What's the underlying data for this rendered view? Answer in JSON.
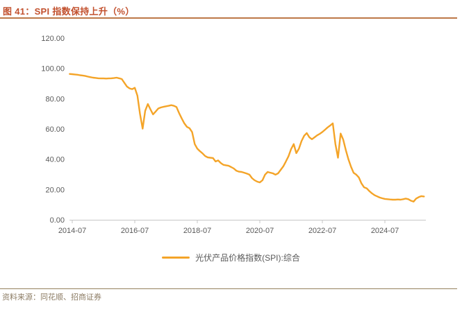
{
  "figure": {
    "title": "图 41：SPI 指数保持上升（%）"
  },
  "legend": {
    "label": "光伏产品价格指数(SPI):综合"
  },
  "footer": {
    "source": "资料来源：同花顺、招商证券"
  },
  "colors": {
    "line": "#F4A428",
    "title": "#C2502D",
    "title_rule": "#BD7747",
    "axis": "#C6C6C6",
    "tick_label": "#595959",
    "footer_rule": "#94805C",
    "footer_text": "#8C7C64"
  },
  "chart_data": {
    "type": "line",
    "title": "图 41：SPI 指数保持上升（%）",
    "xlabel": "",
    "ylabel": "",
    "grid": false,
    "legend_position": "bottom",
    "x_axis": {
      "ticks": [
        "2014-07",
        "2016-07",
        "2018-07",
        "2020-07",
        "2022-07",
        "2024-07"
      ]
    },
    "y_axis": {
      "ticks": [
        0,
        20,
        40,
        60,
        80,
        100,
        120
      ],
      "tick_labels": [
        "0.00",
        "20.00",
        "40.00",
        "60.00",
        "80.00",
        "100.00",
        "120.00"
      ],
      "range": [
        0,
        120
      ]
    },
    "series": [
      {
        "name": "光伏产品价格指数(SPI):综合",
        "color": "#F4A428",
        "points": [
          [
            "2014-06",
            96.3
          ],
          [
            "2014-07",
            96.2
          ],
          [
            "2014-08",
            96.0
          ],
          [
            "2014-09",
            95.8
          ],
          [
            "2014-10",
            95.5
          ],
          [
            "2014-11",
            95.3
          ],
          [
            "2014-12",
            95.0
          ],
          [
            "2015-01",
            94.6
          ],
          [
            "2015-02",
            94.2
          ],
          [
            "2015-03",
            93.9
          ],
          [
            "2015-04",
            93.7
          ],
          [
            "2015-05",
            93.5
          ],
          [
            "2015-06",
            93.4
          ],
          [
            "2015-07",
            93.4
          ],
          [
            "2015-08",
            93.3
          ],
          [
            "2015-09",
            93.4
          ],
          [
            "2015-10",
            93.5
          ],
          [
            "2015-11",
            93.6
          ],
          [
            "2015-12",
            93.9
          ],
          [
            "2016-01",
            93.5
          ],
          [
            "2016-02",
            93.0
          ],
          [
            "2016-03",
            90.5
          ],
          [
            "2016-04",
            88.0
          ],
          [
            "2016-05",
            86.8
          ],
          [
            "2016-06",
            86.3
          ],
          [
            "2016-07",
            87.2
          ],
          [
            "2016-08",
            82.0
          ],
          [
            "2016-09",
            70.0
          ],
          [
            "2016-10",
            60.2
          ],
          [
            "2016-11",
            72.0
          ],
          [
            "2016-12",
            76.5
          ],
          [
            "2017-01",
            73.0
          ],
          [
            "2017-02",
            69.6
          ],
          [
            "2017-03",
            71.5
          ],
          [
            "2017-04",
            73.5
          ],
          [
            "2017-05",
            74.2
          ],
          [
            "2017-06",
            74.6
          ],
          [
            "2017-07",
            75.0
          ],
          [
            "2017-08",
            75.3
          ],
          [
            "2017-09",
            75.7
          ],
          [
            "2017-10",
            75.3
          ],
          [
            "2017-11",
            74.5
          ],
          [
            "2017-12",
            70.5
          ],
          [
            "2018-01",
            67.0
          ],
          [
            "2018-02",
            63.7
          ],
          [
            "2018-03",
            61.4
          ],
          [
            "2018-04",
            60.5
          ],
          [
            "2018-05",
            58.0
          ],
          [
            "2018-06",
            50.0
          ],
          [
            "2018-07",
            47.0
          ],
          [
            "2018-08",
            45.3
          ],
          [
            "2018-09",
            43.9
          ],
          [
            "2018-10",
            42.1
          ],
          [
            "2018-11",
            41.2
          ],
          [
            "2018-12",
            41.0
          ],
          [
            "2019-01",
            40.8
          ],
          [
            "2019-02",
            38.5
          ],
          [
            "2019-03",
            39.2
          ],
          [
            "2019-04",
            37.5
          ],
          [
            "2019-05",
            36.3
          ],
          [
            "2019-06",
            36.0
          ],
          [
            "2019-07",
            35.7
          ],
          [
            "2019-08",
            34.8
          ],
          [
            "2019-09",
            33.9
          ],
          [
            "2019-10",
            32.4
          ],
          [
            "2019-11",
            31.8
          ],
          [
            "2019-12",
            31.6
          ],
          [
            "2020-01",
            31.1
          ],
          [
            "2020-02",
            30.5
          ],
          [
            "2020-03",
            29.8
          ],
          [
            "2020-04",
            27.5
          ],
          [
            "2020-05",
            26.1
          ],
          [
            "2020-06",
            25.2
          ],
          [
            "2020-07",
            24.7
          ],
          [
            "2020-08",
            26.1
          ],
          [
            "2020-09",
            29.8
          ],
          [
            "2020-10",
            31.6
          ],
          [
            "2020-11",
            31.1
          ],
          [
            "2020-12",
            30.7
          ],
          [
            "2021-01",
            29.8
          ],
          [
            "2021-02",
            30.7
          ],
          [
            "2021-03",
            33.0
          ],
          [
            "2021-04",
            35.3
          ],
          [
            "2021-05",
            38.5
          ],
          [
            "2021-06",
            42.0
          ],
          [
            "2021-07",
            46.7
          ],
          [
            "2021-08",
            50.0
          ],
          [
            "2021-09",
            44.0
          ],
          [
            "2021-10",
            47.0
          ],
          [
            "2021-11",
            52.0
          ],
          [
            "2021-12",
            55.5
          ],
          [
            "2022-01",
            57.3
          ],
          [
            "2022-02",
            54.5
          ],
          [
            "2022-03",
            53.2
          ],
          [
            "2022-04",
            54.5
          ],
          [
            "2022-05",
            55.8
          ],
          [
            "2022-06",
            56.8
          ],
          [
            "2022-07",
            58.0
          ],
          [
            "2022-08",
            59.5
          ],
          [
            "2022-09",
            61.0
          ],
          [
            "2022-10",
            62.3
          ],
          [
            "2022-11",
            63.7
          ],
          [
            "2022-12",
            50.0
          ],
          [
            "2023-01",
            41.0
          ],
          [
            "2023-02",
            57.0
          ],
          [
            "2023-03",
            53.0
          ],
          [
            "2023-04",
            46.0
          ],
          [
            "2023-05",
            40.0
          ],
          [
            "2023-06",
            35.0
          ],
          [
            "2023-07",
            31.0
          ],
          [
            "2023-08",
            29.8
          ],
          [
            "2023-09",
            28.0
          ],
          [
            "2023-10",
            24.0
          ],
          [
            "2023-11",
            21.5
          ],
          [
            "2023-12",
            20.8
          ],
          [
            "2024-01",
            19.0
          ],
          [
            "2024-02",
            17.5
          ],
          [
            "2024-03",
            16.3
          ],
          [
            "2024-04",
            15.5
          ],
          [
            "2024-05",
            14.7
          ],
          [
            "2024-06",
            14.2
          ],
          [
            "2024-07",
            13.8
          ],
          [
            "2024-08",
            13.6
          ],
          [
            "2024-09",
            13.4
          ],
          [
            "2024-10",
            13.3
          ],
          [
            "2024-11",
            13.3
          ],
          [
            "2024-12",
            13.4
          ],
          [
            "2025-01",
            13.3
          ],
          [
            "2025-02",
            13.6
          ],
          [
            "2025-03",
            14.0
          ],
          [
            "2025-04",
            13.6
          ],
          [
            "2025-05",
            12.6
          ],
          [
            "2025-06",
            12.0
          ],
          [
            "2025-07",
            14.0
          ],
          [
            "2025-08",
            15.0
          ],
          [
            "2025-09",
            15.6
          ],
          [
            "2025-10",
            15.4
          ]
        ]
      }
    ]
  }
}
